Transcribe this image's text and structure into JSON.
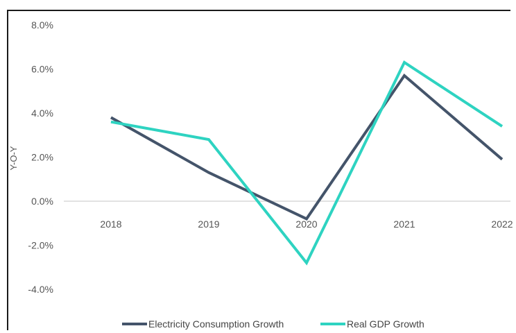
{
  "chart_data": {
    "type": "line",
    "title": "",
    "xlabel": "",
    "ylabel": "Y-O-Y",
    "categories": [
      "2018",
      "2019",
      "2020",
      "2021",
      "2022"
    ],
    "y_ticks": [
      "8.0%",
      "6.0%",
      "4.0%",
      "2.0%",
      "0.0%",
      "-2.0%",
      "-4.0%"
    ],
    "ylim": [
      -6,
      8
    ],
    "grid": false,
    "legend_position": "bottom",
    "series": [
      {
        "name": "Electricity Consumption Growth",
        "color": "#44546a",
        "values": [
          3.8,
          1.3,
          -0.8,
          5.7,
          1.9
        ]
      },
      {
        "name": "Real GDP Growth",
        "color": "#2ed3c1",
        "values": [
          3.6,
          2.8,
          -2.8,
          6.3,
          3.4
        ]
      }
    ]
  }
}
